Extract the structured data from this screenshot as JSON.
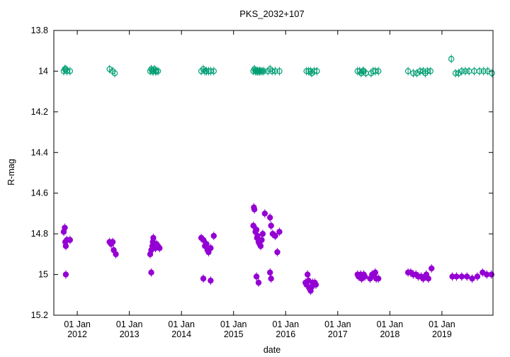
{
  "chart_data": {
    "type": "scatter",
    "title": "PKS_2032+107",
    "xlabel": "date",
    "ylabel": "R-mag",
    "ylim": [
      15.2,
      13.8
    ],
    "y_inverted": true,
    "yticks": [
      "13.8",
      "14",
      "14.2",
      "14.4",
      "14.6",
      "14.8",
      "15",
      "15.2"
    ],
    "ytick_values": [
      13.8,
      14.0,
      14.2,
      14.4,
      14.6,
      14.8,
      15.0,
      15.2
    ],
    "xlim": [
      2011.55,
      2019.98
    ],
    "xticks": [
      {
        "label": "01 Jan",
        "year": "2012",
        "value": 2012
      },
      {
        "label": "01 Jan",
        "year": "2013",
        "value": 2013
      },
      {
        "label": "01 Jan",
        "year": "2014",
        "value": 2014
      },
      {
        "label": "01 Jan",
        "year": "2015",
        "value": 2015
      },
      {
        "label": "01 Jan",
        "year": "2016",
        "value": 2016
      },
      {
        "label": "01 Jan",
        "year": "2017",
        "value": 2017
      },
      {
        "label": "01 Jan",
        "year": "2018",
        "value": 2018
      },
      {
        "label": "01 Jan",
        "year": "2019",
        "value": 2019
      }
    ],
    "grid": false,
    "legend": "none",
    "series": [
      {
        "marker": "open-circle",
        "color": "#009e73",
        "points": [
          [
            2011.74,
            14.0
          ],
          [
            2011.76,
            13.99
          ],
          [
            2011.78,
            13.99
          ],
          [
            2011.8,
            14.0
          ],
          [
            2011.86,
            14.0
          ],
          [
            2012.62,
            13.99
          ],
          [
            2012.68,
            14.0
          ],
          [
            2012.72,
            14.01
          ],
          [
            2013.4,
            14.0
          ],
          [
            2013.42,
            13.99
          ],
          [
            2013.44,
            14.0
          ],
          [
            2013.46,
            14.0
          ],
          [
            2013.48,
            13.99
          ],
          [
            2013.5,
            14.0
          ],
          [
            2013.52,
            14.0
          ],
          [
            2013.55,
            14.0
          ],
          [
            2014.38,
            14.0
          ],
          [
            2014.42,
            13.99
          ],
          [
            2014.45,
            14.0
          ],
          [
            2014.48,
            14.0
          ],
          [
            2014.52,
            14.0
          ],
          [
            2014.56,
            14.0
          ],
          [
            2014.62,
            14.0
          ],
          [
            2015.38,
            14.0
          ],
          [
            2015.4,
            13.99
          ],
          [
            2015.42,
            14.0
          ],
          [
            2015.44,
            14.0
          ],
          [
            2015.46,
            14.0
          ],
          [
            2015.48,
            14.0
          ],
          [
            2015.5,
            14.0
          ],
          [
            2015.52,
            14.0
          ],
          [
            2015.55,
            14.0
          ],
          [
            2015.58,
            14.0
          ],
          [
            2015.66,
            14.0
          ],
          [
            2015.7,
            13.99
          ],
          [
            2015.74,
            14.0
          ],
          [
            2015.8,
            14.0
          ],
          [
            2015.88,
            14.0
          ],
          [
            2016.4,
            14.0
          ],
          [
            2016.44,
            14.0
          ],
          [
            2016.48,
            14.0
          ],
          [
            2016.5,
            14.01
          ],
          [
            2016.55,
            14.0
          ],
          [
            2016.6,
            14.0
          ],
          [
            2017.38,
            14.0
          ],
          [
            2017.42,
            14.0
          ],
          [
            2017.45,
            14.01
          ],
          [
            2017.48,
            14.0
          ],
          [
            2017.5,
            14.0
          ],
          [
            2017.54,
            14.01
          ],
          [
            2017.64,
            14.01
          ],
          [
            2017.68,
            14.0
          ],
          [
            2017.72,
            14.0
          ],
          [
            2017.78,
            14.0
          ],
          [
            2018.35,
            14.0
          ],
          [
            2018.45,
            14.01
          ],
          [
            2018.52,
            14.01
          ],
          [
            2018.58,
            14.0
          ],
          [
            2018.64,
            14.0
          ],
          [
            2018.68,
            14.01
          ],
          [
            2018.72,
            14.0
          ],
          [
            2018.78,
            14.0
          ],
          [
            2019.18,
            13.94
          ],
          [
            2019.26,
            14.01
          ],
          [
            2019.32,
            14.01
          ],
          [
            2019.38,
            14.0
          ],
          [
            2019.45,
            14.0
          ],
          [
            2019.52,
            14.0
          ],
          [
            2019.62,
            14.0
          ],
          [
            2019.72,
            14.0
          ],
          [
            2019.8,
            14.0
          ],
          [
            2019.88,
            14.0
          ],
          [
            2019.96,
            14.01
          ]
        ]
      },
      {
        "marker": "filled-circle",
        "color": "#9400d3",
        "points": [
          [
            2011.74,
            14.79
          ],
          [
            2011.76,
            14.77
          ],
          [
            2011.77,
            14.84
          ],
          [
            2011.78,
            14.86
          ],
          [
            2011.8,
            14.83
          ],
          [
            2011.86,
            14.83
          ],
          [
            2011.78,
            15.0
          ],
          [
            2012.62,
            14.84
          ],
          [
            2012.65,
            14.85
          ],
          [
            2012.68,
            14.84
          ],
          [
            2012.7,
            14.88
          ],
          [
            2012.74,
            14.9
          ],
          [
            2013.4,
            14.9
          ],
          [
            2013.42,
            14.88
          ],
          [
            2013.44,
            14.86
          ],
          [
            2013.45,
            14.84
          ],
          [
            2013.46,
            14.82
          ],
          [
            2013.48,
            14.86
          ],
          [
            2013.5,
            14.87
          ],
          [
            2013.52,
            14.85
          ],
          [
            2013.55,
            14.86
          ],
          [
            2013.58,
            14.87
          ],
          [
            2013.42,
            14.99
          ],
          [
            2014.38,
            14.82
          ],
          [
            2014.42,
            14.83
          ],
          [
            2014.45,
            14.86
          ],
          [
            2014.48,
            14.85
          ],
          [
            2014.5,
            14.88
          ],
          [
            2014.52,
            14.89
          ],
          [
            2014.56,
            14.87
          ],
          [
            2014.62,
            14.81
          ],
          [
            2014.42,
            15.02
          ],
          [
            2014.56,
            15.03
          ],
          [
            2015.38,
            14.76
          ],
          [
            2015.39,
            14.67
          ],
          [
            2015.4,
            14.68
          ],
          [
            2015.42,
            14.79
          ],
          [
            2015.44,
            14.78
          ],
          [
            2015.45,
            14.82
          ],
          [
            2015.46,
            14.81
          ],
          [
            2015.48,
            14.84
          ],
          [
            2015.5,
            14.85
          ],
          [
            2015.52,
            14.86
          ],
          [
            2015.54,
            14.83
          ],
          [
            2015.56,
            14.8
          ],
          [
            2015.6,
            14.7
          ],
          [
            2015.7,
            14.72
          ],
          [
            2015.72,
            14.76
          ],
          [
            2015.75,
            14.8
          ],
          [
            2015.8,
            14.81
          ],
          [
            2015.84,
            14.89
          ],
          [
            2015.88,
            14.79
          ],
          [
            2015.44,
            15.01
          ],
          [
            2015.48,
            15.04
          ],
          [
            2015.7,
            14.99
          ],
          [
            2015.72,
            15.02
          ],
          [
            2016.38,
            15.04
          ],
          [
            2016.4,
            15.05
          ],
          [
            2016.42,
            15.0
          ],
          [
            2016.44,
            15.03
          ],
          [
            2016.46,
            15.07
          ],
          [
            2016.48,
            15.08
          ],
          [
            2016.5,
            15.06
          ],
          [
            2016.52,
            15.04
          ],
          [
            2016.54,
            15.05
          ],
          [
            2016.56,
            15.04
          ],
          [
            2016.58,
            15.05
          ],
          [
            2017.38,
            15.0
          ],
          [
            2017.4,
            15.01
          ],
          [
            2017.42,
            15.01
          ],
          [
            2017.44,
            15.0
          ],
          [
            2017.46,
            15.02
          ],
          [
            2017.48,
            15.01
          ],
          [
            2017.5,
            15.0
          ],
          [
            2017.52,
            15.01
          ],
          [
            2017.62,
            15.02
          ],
          [
            2017.66,
            15.0
          ],
          [
            2017.7,
            15.01
          ],
          [
            2017.72,
            14.99
          ],
          [
            2017.74,
            15.02
          ],
          [
            2017.78,
            15.02
          ],
          [
            2018.35,
            14.99
          ],
          [
            2018.4,
            14.99
          ],
          [
            2018.45,
            15.0
          ],
          [
            2018.5,
            15.0
          ],
          [
            2018.55,
            15.01
          ],
          [
            2018.6,
            15.01
          ],
          [
            2018.64,
            15.02
          ],
          [
            2018.7,
            15.0
          ],
          [
            2018.74,
            15.02
          ],
          [
            2018.8,
            14.97
          ],
          [
            2019.2,
            15.01
          ],
          [
            2019.28,
            15.01
          ],
          [
            2019.38,
            15.01
          ],
          [
            2019.48,
            15.01
          ],
          [
            2019.58,
            15.02
          ],
          [
            2019.68,
            15.01
          ],
          [
            2019.78,
            14.99
          ],
          [
            2019.86,
            15.0
          ],
          [
            2019.95,
            15.0
          ]
        ]
      }
    ]
  }
}
